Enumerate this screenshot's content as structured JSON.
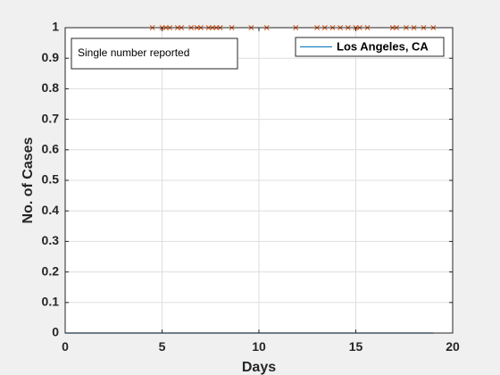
{
  "chart_data": {
    "type": "line",
    "xlabel": "Days",
    "ylabel": "No. of Cases",
    "xlim": [
      0,
      20
    ],
    "ylim": [
      0,
      1
    ],
    "xticks": [
      0,
      5,
      10,
      15,
      20
    ],
    "xtick_labels": [
      "0",
      "5",
      "10",
      "15",
      "20"
    ],
    "yticks": [
      0,
      0.1,
      0.2,
      0.3,
      0.4,
      0.5,
      0.6,
      0.7,
      0.8,
      0.9,
      1
    ],
    "ytick_labels": [
      "0",
      "0.1",
      "0.2",
      "0.3",
      "0.4",
      "0.5",
      "0.6",
      "0.7",
      "0.8",
      "0.9",
      "1"
    ],
    "grid": true,
    "legend_position": "top-right",
    "annotation": "Single number reported",
    "series": [
      {
        "name": "Los Angeles, CA",
        "color": "#0072bd",
        "x": [
          0,
          19
        ],
        "y": [
          0,
          0
        ]
      },
      {
        "color": "#d95319",
        "marker": "x",
        "x": [
          4.5,
          5.0,
          5.2,
          5.4,
          5.8,
          6.0,
          6.5,
          6.8,
          7.0,
          7.4,
          7.6,
          7.8,
          8.0,
          8.6,
          9.6,
          10.4,
          11.9,
          13.0,
          13.4,
          13.8,
          14.2,
          14.6,
          15.0,
          15.2,
          15.6,
          16.9,
          17.1,
          17.6,
          18.0,
          18.5,
          19.0
        ],
        "y": [
          1,
          1,
          1,
          1,
          1,
          1,
          1,
          1,
          1,
          1,
          1,
          1,
          1,
          1,
          1,
          1,
          1,
          1,
          1,
          1,
          1,
          1,
          1,
          1,
          1,
          1,
          1,
          1,
          1,
          1,
          1
        ]
      }
    ]
  }
}
